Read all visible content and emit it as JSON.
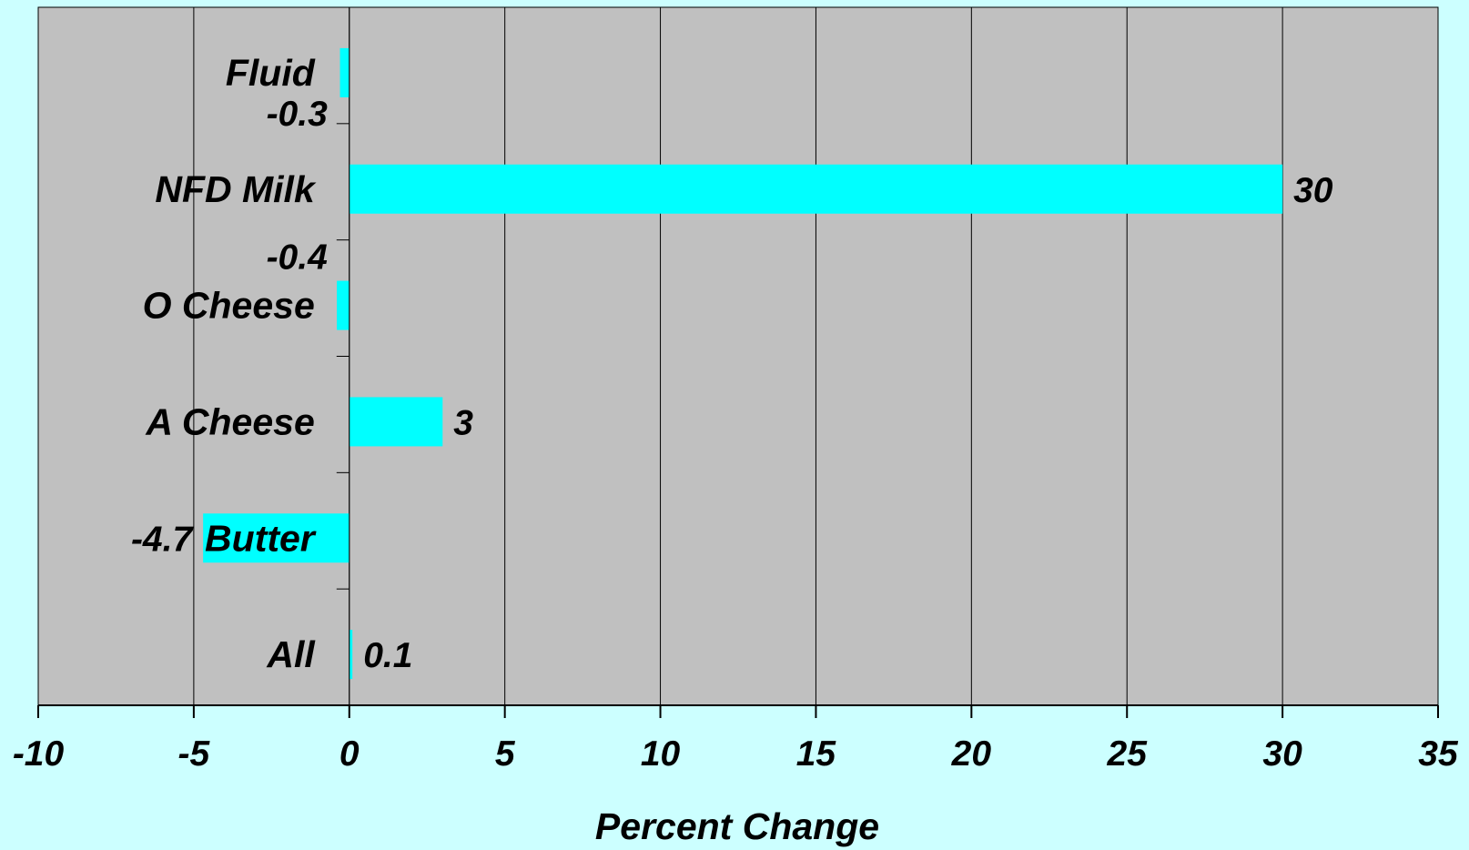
{
  "chart_data": {
    "type": "bar",
    "orientation": "horizontal",
    "categories": [
      "Fluid",
      "NFD Milk",
      "O Cheese",
      "A Cheese",
      "Butter",
      "All"
    ],
    "values": [
      -0.3,
      30,
      -0.4,
      3,
      -4.7,
      0.1
    ],
    "value_labels": [
      "-0.3",
      "30",
      "-0.4",
      "3",
      "-4.7",
      "0.1"
    ],
    "xlabel": "Percent Change",
    "ylabel": "",
    "title": "",
    "xlim": [
      -10,
      35
    ],
    "xticks": [
      "-10",
      "-5",
      "0",
      "5",
      "10",
      "15",
      "20",
      "25",
      "30",
      "35"
    ],
    "grid": true,
    "legend": "none",
    "colors": {
      "background": "#ccffff",
      "plot_area": "#c0c0c0",
      "bar": "#00ffff",
      "grid": "#000000"
    }
  }
}
